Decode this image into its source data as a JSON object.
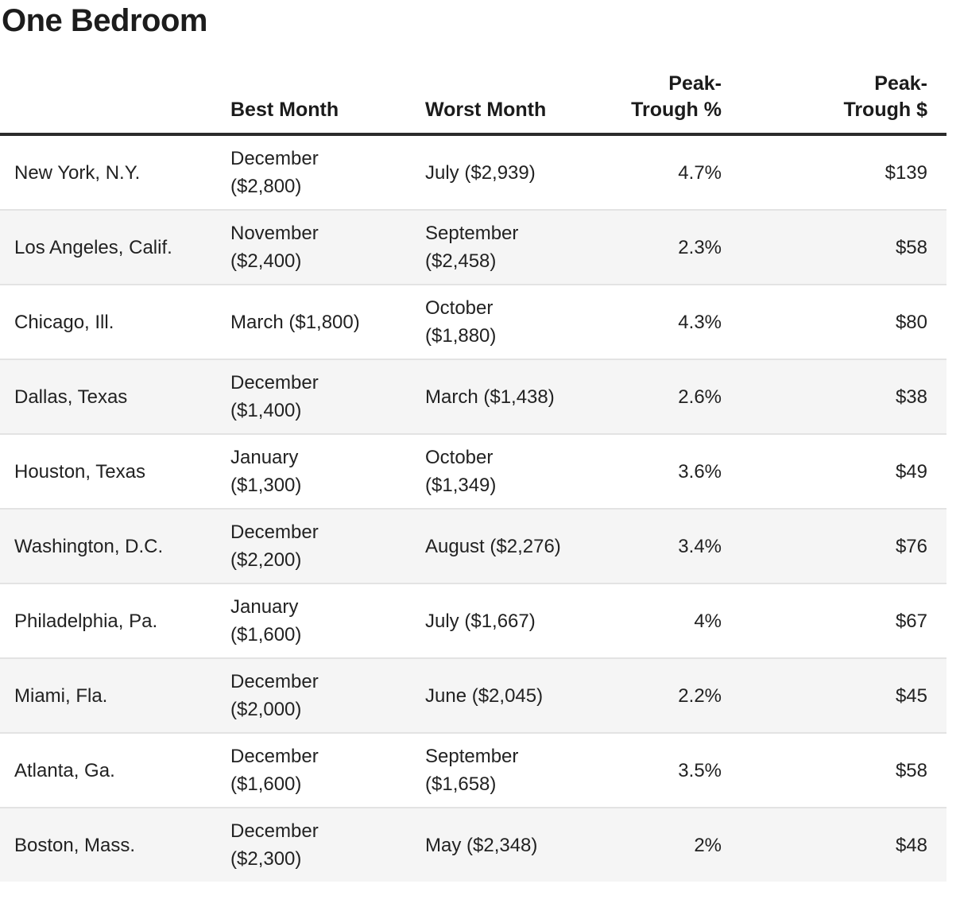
{
  "title": "One Bedroom",
  "table": {
    "headers": {
      "city": "",
      "best": "Best Month",
      "worst": "Worst Month",
      "pct": "Peak-\nTrough %",
      "usd": "Peak-\nTrough $"
    },
    "rows": [
      {
        "city": "New York, N.Y.",
        "best": "December\n($2,800)",
        "worst": "July ($2,939)",
        "pct": "4.7%",
        "usd": "$139"
      },
      {
        "city": "Los Angeles, Calif.",
        "best": "November\n($2,400)",
        "worst": "September\n($2,458)",
        "pct": "2.3%",
        "usd": "$58"
      },
      {
        "city": "Chicago, Ill.",
        "best": "March ($1,800)",
        "worst": "October\n($1,880)",
        "pct": "4.3%",
        "usd": "$80"
      },
      {
        "city": "Dallas, Texas",
        "best": "December\n($1,400)",
        "worst": "March ($1,438)",
        "pct": "2.6%",
        "usd": "$38"
      },
      {
        "city": "Houston, Texas",
        "best": "January\n($1,300)",
        "worst": "October\n($1,349)",
        "pct": "3.6%",
        "usd": "$49"
      },
      {
        "city": "Washington, D.C.",
        "best": "December\n($2,200)",
        "worst": "August ($2,276)",
        "pct": "3.4%",
        "usd": "$76"
      },
      {
        "city": "Philadelphia, Pa.",
        "best": "January\n($1,600)",
        "worst": "July ($1,667)",
        "pct": "4%",
        "usd": "$67"
      },
      {
        "city": "Miami, Fla.",
        "best": "December\n($2,000)",
        "worst": "June ($2,045)",
        "pct": "2.2%",
        "usd": "$45"
      },
      {
        "city": "Atlanta, Ga.",
        "best": "December\n($1,600)",
        "worst": "September\n($1,658)",
        "pct": "3.5%",
        "usd": "$58"
      },
      {
        "city": "Boston, Mass.",
        "best": "December\n($2,300)",
        "worst": "May ($2,348)",
        "pct": "2%",
        "usd": "$48"
      }
    ]
  },
  "colors": {
    "text": "#222222",
    "header_rule": "#2b2b2b",
    "row_alt_background": "#f5f5f5",
    "row_separator": "#e3e3e3"
  },
  "chart_data": {
    "type": "table",
    "title": "One Bedroom",
    "columns": [
      "",
      "Best Month",
      "Worst Month",
      "Peak-Trough %",
      "Peak-Trough $"
    ],
    "rows": [
      [
        "New York, N.Y.",
        "December ($2,800)",
        "July ($2,939)",
        "4.7%",
        "$139"
      ],
      [
        "Los Angeles, Calif.",
        "November ($2,400)",
        "September ($2,458)",
        "2.3%",
        "$58"
      ],
      [
        "Chicago, Ill.",
        "March ($1,800)",
        "October ($1,880)",
        "4.3%",
        "$80"
      ],
      [
        "Dallas, Texas",
        "December ($1,400)",
        "March ($1,438)",
        "2.6%",
        "$38"
      ],
      [
        "Houston, Texas",
        "January ($1,300)",
        "October ($1,349)",
        "3.6%",
        "$49"
      ],
      [
        "Washington, D.C.",
        "December ($2,200)",
        "August ($2,276)",
        "3.4%",
        "$76"
      ],
      [
        "Philadelphia, Pa.",
        "January ($1,600)",
        "July ($1,667)",
        "4%",
        "$67"
      ],
      [
        "Miami, Fla.",
        "December ($2,000)",
        "June ($2,045)",
        "2.2%",
        "$45"
      ],
      [
        "Atlanta, Ga.",
        "December ($1,600)",
        "September ($1,658)",
        "3.5%",
        "$58"
      ],
      [
        "Boston, Mass.",
        "December ($2,300)",
        "May ($2,348)",
        "2%",
        "$48"
      ]
    ]
  }
}
